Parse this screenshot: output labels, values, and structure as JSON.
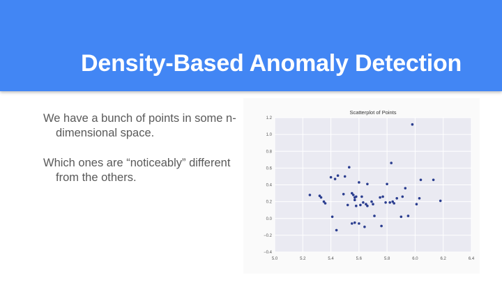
{
  "slide": {
    "title": "Density-Based Anomaly Detection",
    "bullets": [
      "We have a bunch of points in some n-dimensional space.",
      "Which ones are “noticeably” different from the others."
    ]
  },
  "colors": {
    "header": "#4286f4",
    "plot_bg": "#eaeaf2",
    "point": "#2a3d8f"
  },
  "chart_data": {
    "type": "scatter",
    "title": "Scatterplot of Points",
    "xlabel": "",
    "ylabel": "",
    "xlim": [
      5.0,
      6.4
    ],
    "ylim": [
      -0.4,
      1.2
    ],
    "xticks": [
      "5.0",
      "5.2",
      "5.4",
      "5.6",
      "5.8",
      "6.0",
      "6.2",
      "6.4"
    ],
    "yticks": [
      "1.2",
      "1.0",
      "0.8",
      "0.6",
      "0.4",
      "0.2",
      "0.0",
      "−0.2",
      "−0.4"
    ],
    "grid": true,
    "points": [
      [
        5.98,
        1.12
      ],
      [
        5.53,
        0.61
      ],
      [
        5.83,
        0.66
      ],
      [
        5.45,
        0.51
      ],
      [
        5.4,
        0.49
      ],
      [
        5.5,
        0.5
      ],
      [
        5.43,
        0.47
      ],
      [
        5.6,
        0.43
      ],
      [
        5.66,
        0.41
      ],
      [
        5.8,
        0.41
      ],
      [
        5.93,
        0.36
      ],
      [
        6.04,
        0.46
      ],
      [
        6.13,
        0.46
      ],
      [
        5.25,
        0.28
      ],
      [
        5.32,
        0.27
      ],
      [
        5.33,
        0.25
      ],
      [
        5.35,
        0.2
      ],
      [
        5.36,
        0.18
      ],
      [
        5.49,
        0.29
      ],
      [
        5.55,
        0.3
      ],
      [
        5.56,
        0.28
      ],
      [
        5.57,
        0.25
      ],
      [
        5.57,
        0.22
      ],
      [
        5.58,
        0.26
      ],
      [
        5.62,
        0.26
      ],
      [
        5.63,
        0.19
      ],
      [
        5.65,
        0.17
      ],
      [
        5.66,
        0.15
      ],
      [
        5.69,
        0.2
      ],
      [
        5.7,
        0.17
      ],
      [
        5.75,
        0.25
      ],
      [
        5.77,
        0.26
      ],
      [
        5.79,
        0.19
      ],
      [
        5.82,
        0.19
      ],
      [
        5.84,
        0.2
      ],
      [
        5.85,
        0.18
      ],
      [
        5.87,
        0.24
      ],
      [
        5.91,
        0.26
      ],
      [
        6.03,
        0.24
      ],
      [
        6.01,
        0.17
      ],
      [
        6.18,
        0.21
      ],
      [
        5.61,
        0.16
      ],
      [
        5.58,
        0.15
      ],
      [
        5.52,
        0.16
      ],
      [
        5.41,
        0.02
      ],
      [
        5.71,
        0.03
      ],
      [
        5.9,
        0.02
      ],
      [
        5.95,
        0.03
      ],
      [
        5.6,
        -0.06
      ],
      [
        5.57,
        -0.05
      ],
      [
        5.55,
        -0.06
      ],
      [
        5.64,
        -0.1
      ],
      [
        5.76,
        -0.09
      ],
      [
        5.44,
        -0.14
      ]
    ]
  }
}
